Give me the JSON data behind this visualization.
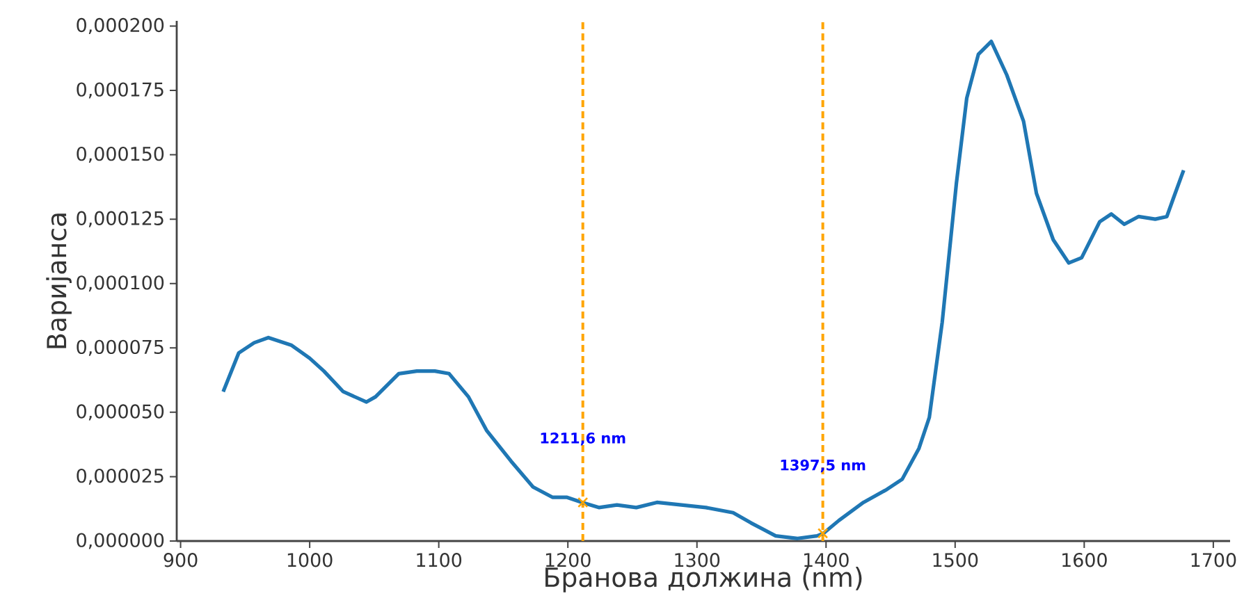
{
  "chart_data": {
    "type": "line",
    "xlabel": "Бранова должина (nm)",
    "ylabel": "Варијанса",
    "xlim": [
      897,
      1713
    ],
    "ylim": [
      0,
      0.000202
    ],
    "xticks": [
      900,
      1000,
      1100,
      1200,
      1300,
      1400,
      1500,
      1600,
      1700
    ],
    "yticks": [
      {
        "value": 0,
        "label": "0,000000"
      },
      {
        "value": 2.5e-05,
        "label": "0,000025"
      },
      {
        "value": 5e-05,
        "label": "0,000050"
      },
      {
        "value": 7.5e-05,
        "label": "0,000075"
      },
      {
        "value": 0.0001,
        "label": "0,000100"
      },
      {
        "value": 0.000125,
        "label": "0,000125"
      },
      {
        "value": 0.00015,
        "label": "0,000150"
      },
      {
        "value": 0.000175,
        "label": "0,000175"
      },
      {
        "value": 0.0002,
        "label": "0,000200"
      }
    ],
    "grid": false,
    "series": [
      {
        "color": "#1f77b4",
        "marker": "none",
        "line_style": "solid",
        "x": [
          933,
          945,
          957,
          968,
          986,
          1000,
          1011,
          1026,
          1044,
          1051,
          1069,
          1083,
          1097,
          1108,
          1123,
          1137,
          1156,
          1173,
          1188,
          1199,
          1211,
          1224,
          1238,
          1253,
          1269,
          1288,
          1307,
          1328,
          1342,
          1361,
          1378,
          1393,
          1398,
          1410,
          1429,
          1447,
          1459,
          1472,
          1480,
          1490,
          1501,
          1509,
          1518,
          1528,
          1540,
          1553,
          1563,
          1576,
          1588,
          1598,
          1612,
          1621,
          1631,
          1642,
          1655,
          1664,
          1669,
          1677
        ],
        "values": [
          5.8e-05,
          7.3e-05,
          7.7e-05,
          7.9e-05,
          7.6e-05,
          7.1e-05,
          6.6e-05,
          5.8e-05,
          5.4e-05,
          5.6e-05,
          6.5e-05,
          6.6e-05,
          6.6e-05,
          6.5e-05,
          5.6e-05,
          4.3e-05,
          3.1e-05,
          2.1e-05,
          1.7e-05,
          1.7e-05,
          1.5e-05,
          1.3e-05,
          1.4e-05,
          1.3e-05,
          1.5e-05,
          1.4e-05,
          1.3e-05,
          1.1e-05,
          7e-06,
          2e-06,
          1e-06,
          2e-06,
          3e-06,
          8e-06,
          1.5e-05,
          2e-05,
          2.4e-05,
          3.6e-05,
          4.8e-05,
          8.5e-05,
          0.000139,
          0.000172,
          0.000189,
          0.000194,
          0.000181,
          0.000163,
          0.000135,
          0.000117,
          0.000108,
          0.00011,
          0.000124,
          0.000127,
          0.000123,
          0.000126,
          0.000125,
          0.000126,
          0.000133,
          0.000144
        ]
      },
      {
        "type": "scatter",
        "color": "#ffa500",
        "marker": "cross",
        "x": [
          1211.6,
          1397.5
        ],
        "values": [
          1.5e-05,
          3e-06
        ]
      }
    ],
    "ref_lines": [
      {
        "axis": "x",
        "value": 1211.6,
        "color": "#ffa500",
        "line_style": "dashed"
      },
      {
        "axis": "x",
        "value": 1397.5,
        "color": "#ffa500",
        "line_style": "dashed"
      }
    ],
    "annotations": [
      {
        "text": "1211,6 nm",
        "x": 1211.6,
        "y": 3.65e-05
      },
      {
        "text": "1397,5 nm",
        "x": 1397.5,
        "y": 2.6e-05
      }
    ]
  }
}
